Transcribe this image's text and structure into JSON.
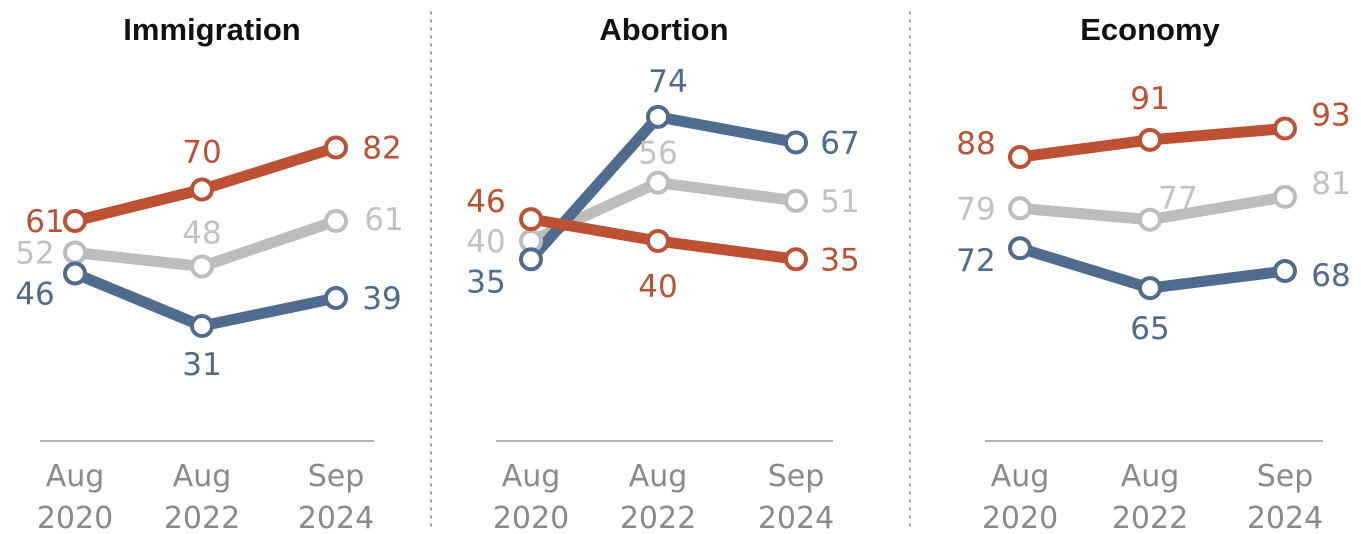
{
  "colors": {
    "red": "#bc5133",
    "blue": "#4f6b8e",
    "gray": "#bdbdbd",
    "gray_text": "#c2c2c2"
  },
  "chart_data": [
    {
      "type": "line",
      "title": "Immigration",
      "categories": [
        "Aug 2020",
        "Aug 2022",
        "Sep 2024"
      ],
      "series": [
        {
          "color": "red",
          "values": [
            61,
            70,
            82
          ]
        },
        {
          "color": "gray",
          "values": [
            52,
            48,
            61
          ]
        },
        {
          "color": "blue",
          "values": [
            46,
            31,
            39
          ]
        }
      ]
    },
    {
      "type": "line",
      "title": "Abortion",
      "categories": [
        "Aug 2020",
        "Aug 2022",
        "Sep 2024"
      ],
      "series": [
        {
          "color": "red",
          "values": [
            46,
            40,
            35
          ]
        },
        {
          "color": "gray",
          "values": [
            40,
            56,
            51
          ]
        },
        {
          "color": "blue",
          "values": [
            35,
            74,
            67
          ]
        }
      ]
    },
    {
      "type": "line",
      "title": "Economy",
      "categories": [
        "Aug 2020",
        "Aug 2022",
        "Sep 2024"
      ],
      "series": [
        {
          "color": "red",
          "values": [
            88,
            91,
            93
          ]
        },
        {
          "color": "gray",
          "values": [
            79,
            77,
            81
          ]
        },
        {
          "color": "blue",
          "values": [
            72,
            65,
            68
          ]
        }
      ]
    }
  ]
}
